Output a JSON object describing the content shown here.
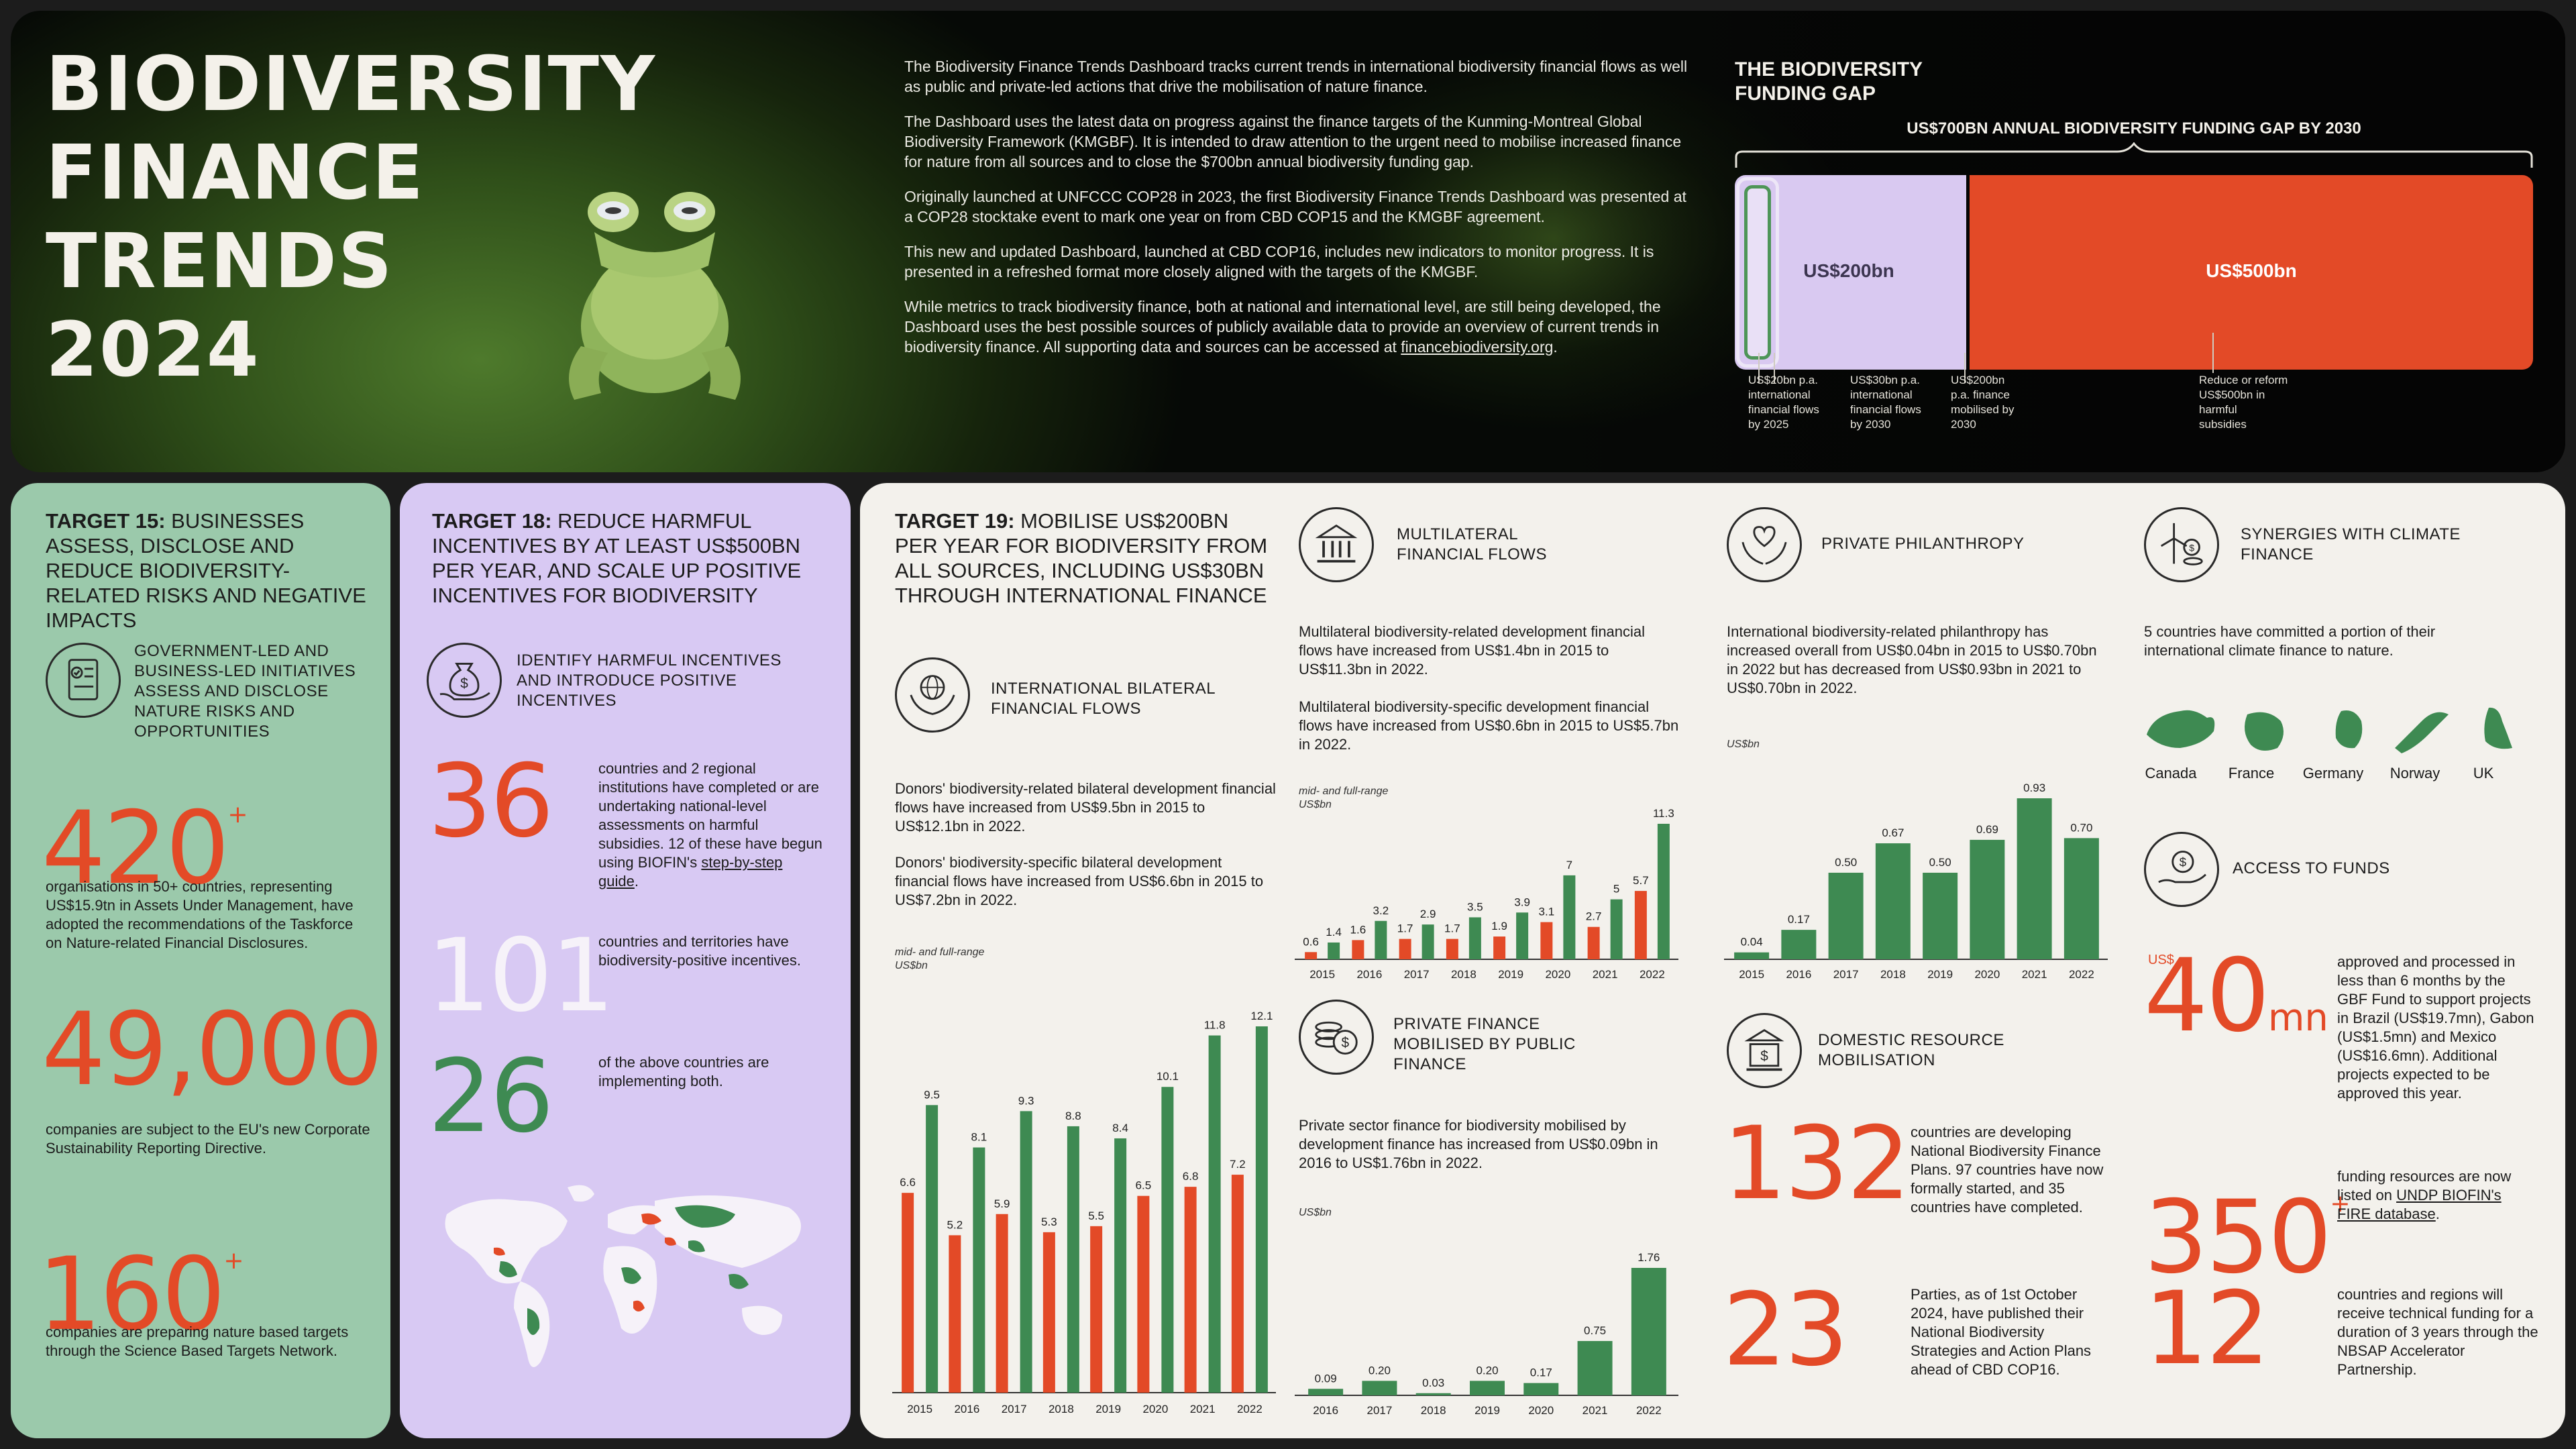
{
  "hero": {
    "title_lines": [
      "BIODIVERSITY",
      "FINANCE",
      "TRENDS",
      "2024"
    ],
    "intro_paragraphs": [
      "The Biodiversity Finance Trends Dashboard tracks current trends in international biodiversity financial flows as well as public and private-led actions that drive the mobilisation of nature finance.",
      "The Dashboard uses the latest data on progress against the finance targets of the Kunming-Montreal Global Biodiversity Framework (KMGBF). It is intended to draw attention to the urgent need to mobilise increased finance for nature from all sources and to close the $700bn annual biodiversity funding gap.",
      "Originally launched at UNFCCC COP28 in 2023, the first Biodiversity Finance Trends Dashboard was presented at a COP28 stocktake event to mark one year on from CBD COP15 and the KMGBF agreement.",
      "This new and updated Dashboard, launched at CBD COP16, includes new indicators to monitor progress. It is presented in a refreshed format more closely aligned with the targets of the KMGBF."
    ],
    "intro_last_prefix": "While metrics to track biodiversity finance, both at national and international level, are still being developed, the Dashboard uses the best possible sources of publicly available data to provide an overview of current trends in biodiversity finance. All supporting data and sources can be accessed at ",
    "intro_link": "financebiodiversity.org",
    "intro_last_suffix": "."
  },
  "gap": {
    "title_line1": "THE BIODIVERSITY",
    "title_line2": "FUNDING GAP",
    "subtitle": "US$700BN ANNUAL BIODIVERSITY FUNDING GAP BY 2030",
    "label_200": "US$200bn",
    "label_500": "US$500bn",
    "note_20": [
      "US$20bn p.a.",
      "international",
      "financial flows",
      "by 2025"
    ],
    "note_30": [
      "US$30bn p.a.",
      "international",
      "financial flows",
      "by 2030"
    ],
    "note_200": [
      "US$200bn",
      "p.a. finance",
      "mobilised by",
      "2030"
    ],
    "note_500": [
      "Reduce or reform",
      "US$500bn in",
      "harmful",
      "subsidies"
    ],
    "colors": {
      "lilac": "#d9c9f1",
      "orange": "#e34a27",
      "green": "#4e9558"
    }
  },
  "target15": {
    "head_bold": "TARGET 15:",
    "head_rest": " BUSINESSES ASSESS, DISCLOSE AND REDUCE BIODIVERSITY-RELATED RISKS AND NEGATIVE IMPACTS",
    "section_title": "GOVERNMENT-LED AND BUSINESS-LED INITIATIVES ASSESS AND DISCLOSE NATURE RISKS AND OPPORTUNITIES",
    "stat1_value": "420",
    "stat1_suffix": "+",
    "stat1_text": "organisations in 50+ countries, representing US$15.9tn in Assets Under Management, have adopted the recommendations of the Taskforce on Nature-related Financial Disclosures.",
    "stat2_value": "49,000",
    "stat2_text": "companies are subject to the EU's new Corporate Sustainability Reporting Directive.",
    "stat3_value": "160",
    "stat3_suffix": "+",
    "stat3_text": "companies are preparing nature based targets through the Science Based Targets Network."
  },
  "target18": {
    "head_bold": "TARGET 18:",
    "head_rest": " REDUCE HARMFUL INCENTIVES BY AT LEAST US$500BN PER YEAR, AND SCALE UP POSITIVE INCENTIVES FOR BIODIVERSITY",
    "section_title": "IDENTIFY HARMFUL INCENTIVES AND INTRODUCE POSITIVE INCENTIVES",
    "stat1_value": "36",
    "stat1_text_a": "countries and 2 regional institutions have completed or are undertaking national-level assessments on harmful subsidies. 12 of these have begun using BIOFIN's ",
    "stat1_link": "step-by-step guide",
    "stat1_text_b": ".",
    "stat2_value": "101",
    "stat2_text": "countries and territories have biodiversity-positive incentives.",
    "stat3_value": "26",
    "stat3_text": "of the above countries are implementing both."
  },
  "target19": {
    "head_bold": "TARGET 19:",
    "head_rest": " MOBILISE US$200BN PER YEAR FOR BIODIVERSITY FROM ALL SOURCES, INCLUDING US$30BN THROUGH INTERNATIONAL FINANCE"
  },
  "bilateral": {
    "title": "INTERNATIONAL BILATERAL FINANCIAL FLOWS",
    "text1": "Donors' biodiversity-related bilateral development financial flows have increased from US$9.5bn in 2015 to US$12.1bn in 2022.",
    "text2": "Donors' biodiversity-specific bilateral development financial flows have increased from US$6.6bn in 2015 to US$7.2bn in 2022.",
    "cap1": "mid- and full-range",
    "cap2": "US$bn"
  },
  "multilateral": {
    "title": "MULTILATERAL FINANCIAL FLOWS",
    "text1": "Multilateral biodiversity-related development financial flows have increased from US$1.4bn in 2015 to US$11.3bn in 2022.",
    "text2": "Multilateral biodiversity-specific development financial flows have increased from US$0.6bn in 2015 to US$5.7bn in 2022.",
    "cap1": "mid- and full-range",
    "cap2": "US$bn"
  },
  "private_mob": {
    "title": "PRIVATE FINANCE MOBILISED BY PUBLIC FINANCE",
    "text1": "Private sector finance for biodiversity mobilised by development finance has increased from US$0.09bn in 2016 to US$1.76bn in 2022.",
    "cap": "US$bn"
  },
  "philanthropy": {
    "title": "PRIVATE PHILANTHROPY",
    "text1": "International biodiversity-related philanthropy has increased overall from US$0.04bn in 2015 to US$0.70bn in 2022 but has decreased from US$0.93bn in 2021 to US$0.70bn in 2022.",
    "cap": "US$bn"
  },
  "domestic": {
    "title": "DOMESTIC RESOURCE MOBILISATION",
    "stat1_value": "132",
    "stat1_text": "countries are developing National Biodiversity Finance Plans. 97 countries have now formally started, and 35 countries have completed.",
    "stat2_value": "23",
    "stat2_text": "Parties, as of 1st October 2024, have published their National Biodiversity Strategies and Action Plans ahead of CBD COP16."
  },
  "synergies": {
    "title": "SYNERGIES WITH CLIMATE FINANCE",
    "text1": "5 countries have committed a portion of their international climate finance to nature.",
    "countries": [
      "Canada",
      "France",
      "Germany",
      "Norway",
      "UK"
    ]
  },
  "access": {
    "title": "ACCESS TO FUNDS",
    "stat1_prefix": "US$",
    "stat1_value": "40",
    "stat1_suffix": "mn",
    "stat1_text": "approved and processed in less than 6 months by the GBF Fund to support projects in Brazil (US$19.7mn), Gabon (US$1.5mn) and Mexico (US$16.6mn). Additional projects expected to be approved this year.",
    "stat2_value": "350",
    "stat2_suffix": "+",
    "stat2_text_a": "funding resources are now listed on ",
    "stat2_link": "UNDP BIOFIN's FIRE database",
    "stat2_text_b": ".",
    "stat3_value": "12",
    "stat3_text": "countries and regions will receive technical funding for a duration of 3 years through the NBSAP Accelerator Partnership."
  },
  "chart_data": [
    {
      "id": "bilateral",
      "type": "bar",
      "title": "International bilateral financial flows",
      "ylabel": "US$bn",
      "categories": [
        "2015",
        "2016",
        "2017",
        "2018",
        "2019",
        "2020",
        "2021",
        "2022"
      ],
      "series": [
        {
          "name": "biodiversity-specific",
          "color": "#e34a27",
          "values": [
            6.6,
            5.2,
            5.9,
            5.3,
            5.5,
            6.5,
            6.8,
            7.2
          ]
        },
        {
          "name": "biodiversity-related",
          "color": "#3e8a52",
          "values": [
            9.5,
            8.1,
            9.3,
            8.8,
            8.4,
            10.1,
            11.8,
            12.1
          ]
        }
      ],
      "ylim": [
        0,
        12.1
      ]
    },
    {
      "id": "multilateral",
      "type": "bar",
      "title": "Multilateral financial flows",
      "ylabel": "US$bn",
      "categories": [
        "2015",
        "2016",
        "2017",
        "2018",
        "2019",
        "2020",
        "2021",
        "2022"
      ],
      "series": [
        {
          "name": "biodiversity-specific",
          "color": "#e34a27",
          "values": [
            0.6,
            1.6,
            1.7,
            1.7,
            1.9,
            3.1,
            2.7,
            5.7
          ]
        },
        {
          "name": "biodiversity-related",
          "color": "#3e8a52",
          "values": [
            1.4,
            3.2,
            2.9,
            3.5,
            3.9,
            7.0,
            5.0,
            11.3
          ]
        }
      ],
      "ylim": [
        0,
        11.3
      ]
    },
    {
      "id": "private_mob",
      "type": "bar",
      "title": "Private finance mobilised by public finance",
      "ylabel": "US$bn",
      "categories": [
        "2016",
        "2017",
        "2018",
        "2019",
        "2020",
        "2021",
        "2022"
      ],
      "series": [
        {
          "name": "mobilised",
          "color": "#3e8a52",
          "values": [
            0.09,
            0.2,
            0.03,
            0.2,
            0.17,
            0.75,
            1.76
          ]
        }
      ],
      "labels": [
        "0.09",
        "0.20",
        "0.03",
        "0.20",
        "0.17",
        "0.75",
        "1.76"
      ],
      "ylim": [
        0,
        1.76
      ]
    },
    {
      "id": "philanthropy",
      "type": "bar",
      "title": "Private philanthropy",
      "ylabel": "US$bn",
      "categories": [
        "2015",
        "2016",
        "2017",
        "2018",
        "2019",
        "2020",
        "2021",
        "2022"
      ],
      "series": [
        {
          "name": "philanthropy",
          "color": "#3e8a52",
          "values": [
            0.04,
            0.17,
            0.5,
            0.67,
            0.5,
            0.69,
            0.93,
            0.7
          ]
        }
      ],
      "labels": [
        "0.04",
        "0.17",
        "0.50",
        "0.67",
        "0.50",
        "0.69",
        "0.93",
        "0.70"
      ],
      "ylim": [
        0,
        0.93
      ]
    }
  ]
}
